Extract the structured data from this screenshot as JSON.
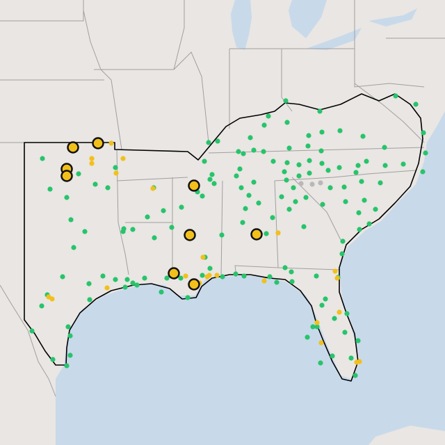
{
  "map": {
    "colors": {
      "land": "#e9e6e3",
      "water": "#c8d9ea",
      "borders": "#9a9a9a",
      "region_outline": "#000000",
      "green_point": "#27c46b",
      "yellow_point": "#f2c01a",
      "grey_point": "#b8b8b8"
    },
    "marker_legend": "none shown"
  }
}
